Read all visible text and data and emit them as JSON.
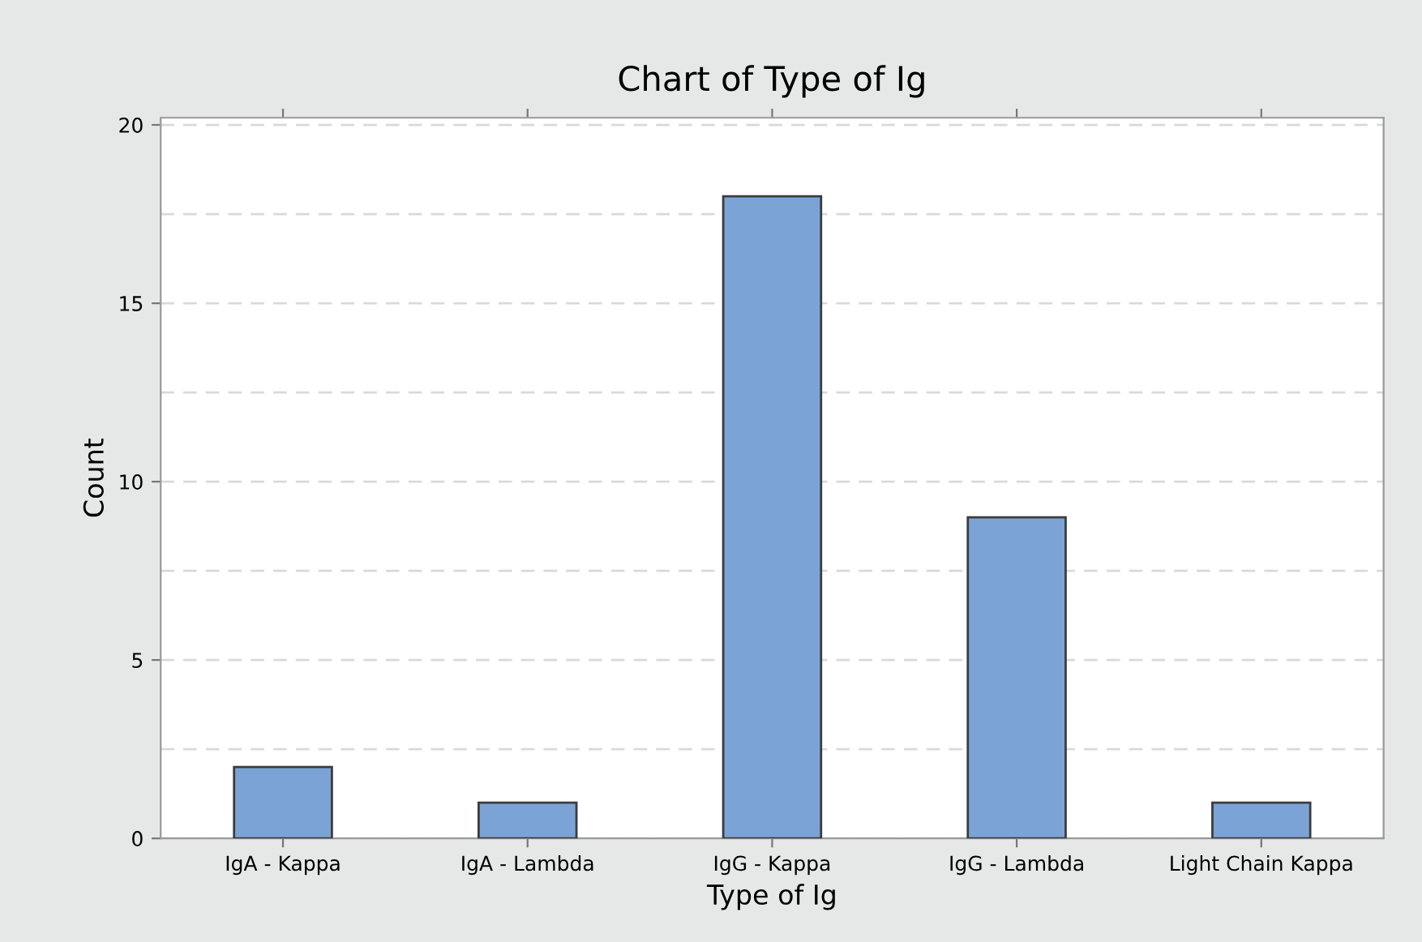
{
  "chart_data": {
    "type": "bar",
    "title": "Chart of Type of Ig",
    "xlabel": "Type of Ig",
    "ylabel": "Count",
    "categories": [
      "IgA - Kappa",
      "IgA - Lambda",
      "IgG - Kappa",
      "IgG - Lambda",
      "Light Chain Kappa"
    ],
    "values": [
      2,
      1,
      18,
      9,
      1
    ],
    "color": "#7ba3d6",
    "ylim": [
      0,
      20.2
    ],
    "yticks": [
      0,
      {
        "value": 2.5,
        "label": null
      },
      5,
      {
        "value": 7.5,
        "label": null
      },
      10,
      {
        "value": 12.5,
        "label": null
      },
      15,
      {
        "value": 17.5,
        "label": null
      },
      20
    ],
    "grid": "y",
    "legend": false
  }
}
